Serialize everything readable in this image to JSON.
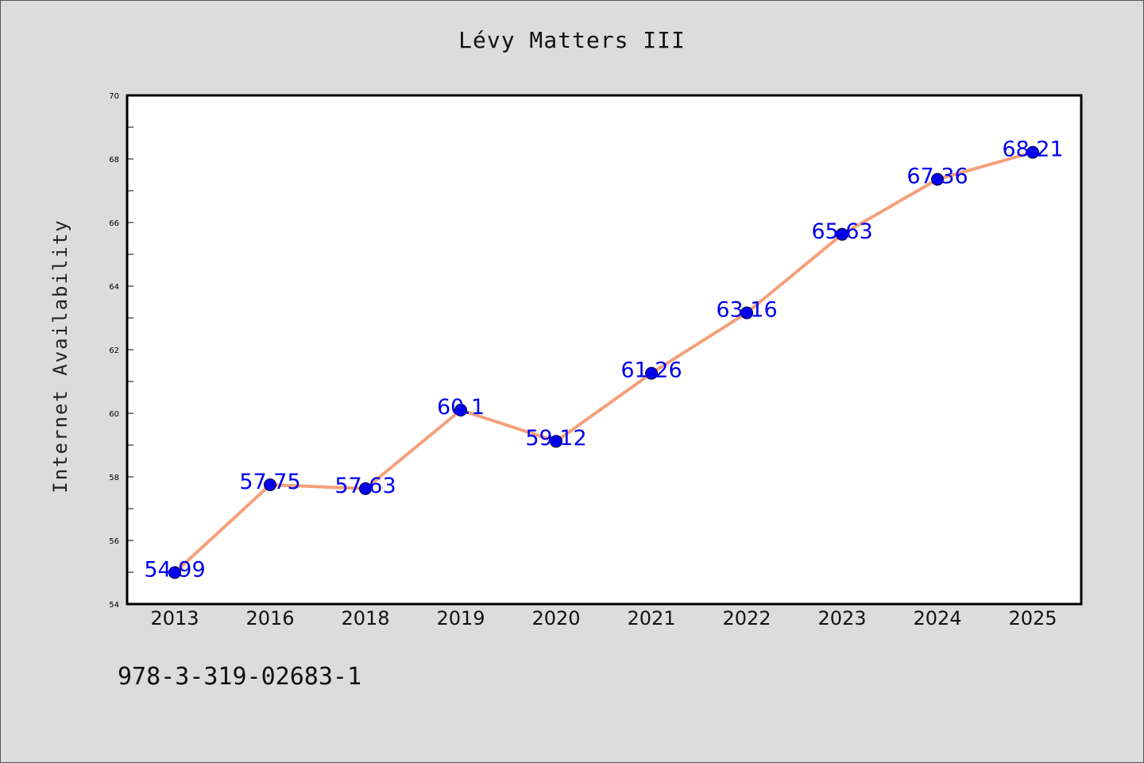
{
  "chart_data": {
    "type": "line",
    "title": "Lévy Matters III",
    "xlabel": "",
    "ylabel": "Internet Availability",
    "categories": [
      "2013",
      "2016",
      "2018",
      "2019",
      "2020",
      "2021",
      "2022",
      "2023",
      "2024",
      "2025"
    ],
    "values": [
      54.99,
      57.75,
      57.63,
      60.1,
      59.12,
      61.26,
      63.16,
      65.63,
      67.36,
      68.21
    ],
    "data_labels": [
      "54.99",
      "57.75",
      "57.63",
      "60.1",
      "59.12",
      "61.26",
      "63.16",
      "65.63",
      "67.36",
      "68.21"
    ],
    "ylim": [
      54,
      70
    ],
    "yticks": [
      54,
      56,
      58,
      60,
      62,
      64,
      66,
      68,
      70
    ],
    "grid": false,
    "legend": "none",
    "line_color": "#f4a07a",
    "marker_color": "#0000ee",
    "label_color": "#0000ee"
  },
  "footnote": "978-3-319-02683-1"
}
